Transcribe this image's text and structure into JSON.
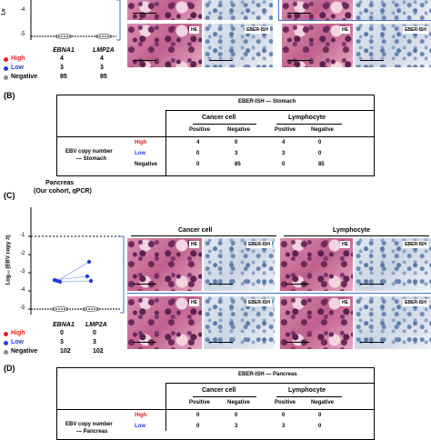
{
  "panelA": {
    "yticks": [
      "-4",
      "-5"
    ],
    "ylabel_fragment": "Lo",
    "genes": [
      "EBNA1",
      "LMP2A"
    ],
    "legend": [
      {
        "label": "High",
        "color": "#e02020",
        "values": [
          "4",
          "4"
        ]
      },
      {
        "label": "Low",
        "color": "#2040e0",
        "values": [
          "3",
          "3"
        ]
      },
      {
        "label": "Negative",
        "color": "#888888",
        "values": [
          "85",
          "85"
        ]
      }
    ],
    "tile_tags": [
      "HE",
      "EBER-ISH",
      "HE",
      "EBER-ISH"
    ]
  },
  "panelB": {
    "letter": "(B)",
    "header": "EBER-ISH — Stomach",
    "groups": [
      "Cancer cell",
      "Lymphocyte"
    ],
    "subcols": [
      "Positive",
      "Negative",
      "Positive",
      "Negative"
    ],
    "rowlabel": [
      "EBV copy number",
      "— Stomach"
    ],
    "rows": [
      {
        "label": "High",
        "color": "#e02020",
        "cells": [
          "4",
          "0",
          "4",
          "0"
        ]
      },
      {
        "label": "Low",
        "color": "#2040e0",
        "cells": [
          "0",
          "3",
          "3",
          "0"
        ]
      },
      {
        "label": "Negative",
        "color": "#000000",
        "cells": [
          "0",
          "85",
          "0",
          "85"
        ]
      }
    ]
  },
  "panelC": {
    "letter": "(C)",
    "title": [
      "Pancreas",
      "(Our cohort, qPCR)"
    ],
    "yticks": [
      "-1",
      "-2",
      "-3",
      "-4",
      "-5"
    ],
    "ylabel": "Log₁₀ (EBV copy #)",
    "genes": [
      "EBNA1",
      "LMP2A"
    ],
    "legend": [
      {
        "label": "High",
        "color": "#e02020",
        "values": [
          "0",
          "0"
        ]
      },
      {
        "label": "Low",
        "color": "#2040e0",
        "values": [
          "3",
          "3"
        ]
      },
      {
        "label": "Negative",
        "color": "#888888",
        "values": [
          "102",
          "102"
        ]
      }
    ],
    "groups": [
      "Cancer cell",
      "Lymphocyte"
    ],
    "tile_tags": [
      "HE",
      "EBER-ISH",
      "HE",
      "EBER-ISH"
    ]
  },
  "panelD": {
    "letter": "(D)",
    "header": "EBER-ISH — Pancreas",
    "groups": [
      "Cancer cell",
      "Lymphocyte"
    ],
    "subcols": [
      "Positive",
      "Negative",
      "Positive",
      "Negative"
    ],
    "rowlabel": [
      "EBV copy number",
      "— Pancreas"
    ],
    "rows": [
      {
        "label": "High",
        "color": "#e02020",
        "cells": [
          "0",
          "0",
          "0",
          "0"
        ]
      },
      {
        "label": "Low",
        "color": "#2040e0",
        "cells": [
          "0",
          "3",
          "3",
          "0"
        ]
      }
    ]
  }
}
